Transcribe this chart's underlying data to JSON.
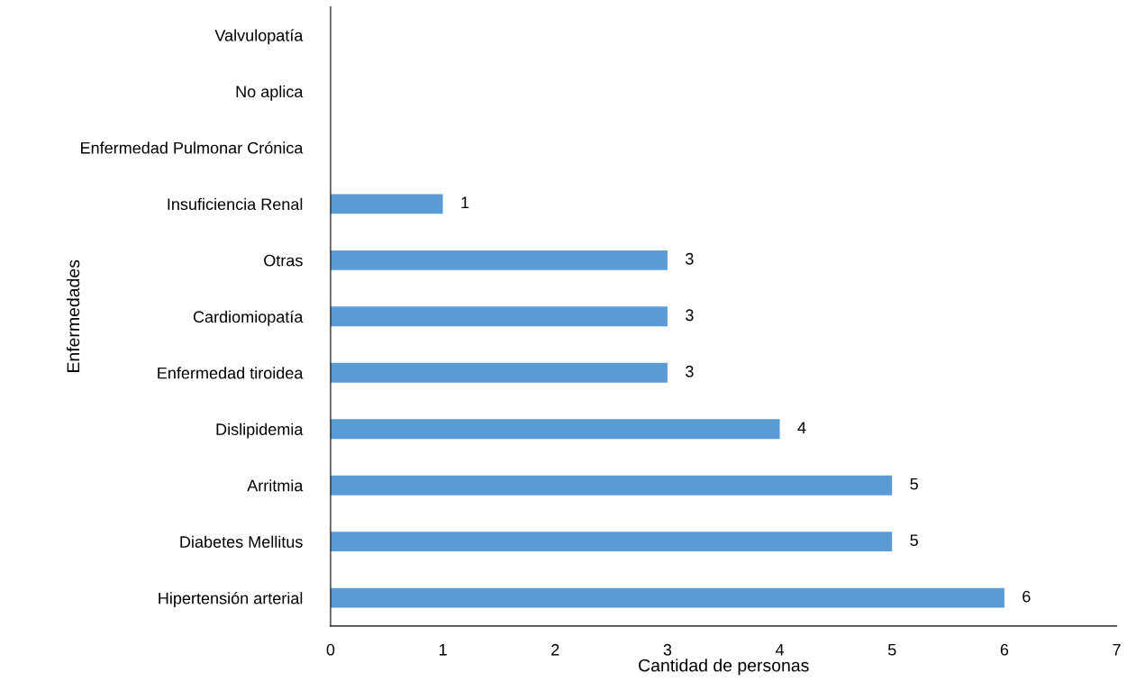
{
  "chart_data": {
    "type": "bar",
    "orientation": "horizontal",
    "xlabel": "Cantidad de personas",
    "ylabel": "Enfermedades",
    "categories": [
      "Valvulopatía",
      "No aplica",
      "Enfermedad Pulmonar Crónica",
      "Insuficiencia Renal",
      "Otras",
      "Cardiomiopatía",
      "Enfermedad tiroidea",
      "Dislipidemia",
      "Arritmia",
      "Diabetes Mellitus",
      "Hipertensión arterial"
    ],
    "values": [
      0,
      0,
      0,
      1,
      3,
      3,
      3,
      4,
      5,
      5,
      6
    ],
    "value_labels": [
      null,
      null,
      null,
      "1",
      "3",
      "3",
      "3",
      "4",
      "5",
      "5",
      "6"
    ],
    "color": "#5b9bd5",
    "xlim": [
      0,
      7
    ],
    "xticks": [
      0,
      1,
      2,
      3,
      4,
      5,
      6,
      7
    ],
    "grid": false
  }
}
